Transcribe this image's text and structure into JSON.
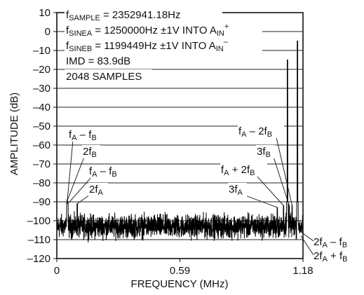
{
  "chart_data": {
    "type": "line",
    "xlabel": "FREQUENCY (MHz)",
    "ylabel": "AMPLITUDE (dB)",
    "xlim": [
      0,
      1.18
    ],
    "ylim": [
      -120,
      10
    ],
    "x_ticks": [
      {
        "value": 0,
        "label": "0"
      },
      {
        "value": 0.59,
        "label": "0.59"
      },
      {
        "value": 1.18,
        "label": "1.18"
      }
    ],
    "y_ticks": [
      10,
      0,
      -10,
      -20,
      -30,
      -40,
      -50,
      -60,
      -70,
      -80,
      -90,
      -100,
      -110,
      -120
    ],
    "grid": {
      "horizontal": true,
      "vertical": false
    },
    "info_lines": [
      [
        {
          "t": "f"
        },
        {
          "t": "SAMPLE",
          "sub": true
        },
        {
          "t": " = 2352941.18Hz"
        }
      ],
      [
        {
          "t": "f"
        },
        {
          "t": "SINEA",
          "sub": true
        },
        {
          "t": " = 1250000Hz ±1V INTO A"
        },
        {
          "t": "IN",
          "sub": true
        },
        {
          "t": "+",
          "sup": true
        }
      ],
      [
        {
          "t": "f"
        },
        {
          "t": "SINEB",
          "sub": true
        },
        {
          "t": " = 1199449Hz ±1V INTO A"
        },
        {
          "t": "IN",
          "sub": true
        },
        {
          "t": "–",
          "sup": true
        }
      ],
      [
        {
          "t": "IMD = 83.9dB"
        }
      ],
      [
        {
          "t": "2048 SAMPLES"
        }
      ]
    ],
    "peaks": [
      {
        "x": 1.1055,
        "y": -15
      },
      {
        "x": 1.1535,
        "y": -5
      }
    ],
    "noise_floor": {
      "mean": -103,
      "spread": 9,
      "points": 2048
    },
    "annotations": [
      {
        "id": "fa-minus-fb-top",
        "parts": [
          {
            "t": "f"
          },
          {
            "t": "A",
            "sub": true
          },
          {
            "t": " – f"
          },
          {
            "t": "B",
            "sub": true
          }
        ],
        "target_x": 0.0505,
        "target_y": -89
      },
      {
        "id": "2fb-left",
        "parts": [
          {
            "t": "2f"
          },
          {
            "t": "B",
            "sub": true
          }
        ],
        "target_x": 0.048,
        "target_y": -90
      },
      {
        "id": "fa-minus-fb-mid",
        "parts": [
          {
            "t": "f"
          },
          {
            "t": "A",
            "sub": true
          },
          {
            "t": " – f"
          },
          {
            "t": "B",
            "sub": true
          }
        ],
        "target_x": 0.053,
        "target_y": -91
      },
      {
        "id": "2fa-left",
        "parts": [
          {
            "t": "2f"
          },
          {
            "t": "A",
            "sub": true
          }
        ],
        "target_x": 0.098,
        "target_y": -91
      },
      {
        "id": "fa-minus-2fb",
        "parts": [
          {
            "t": "f"
          },
          {
            "t": "A",
            "sub": true
          },
          {
            "t": " – 2f"
          },
          {
            "t": "B",
            "sub": true
          }
        ],
        "target_x": 1.128,
        "target_y": -92
      },
      {
        "id": "3fb",
        "parts": [
          {
            "t": "3f"
          },
          {
            "t": "B",
            "sub": true
          }
        ],
        "target_x": 1.114,
        "target_y": -92
      },
      {
        "id": "fa-plus-2fb",
        "parts": [
          {
            "t": "f"
          },
          {
            "t": "A",
            "sub": true
          },
          {
            "t": " + 2f"
          },
          {
            "t": "B",
            "sub": true
          }
        ],
        "target_x": 1.087,
        "target_y": -92
      },
      {
        "id": "3fa",
        "parts": [
          {
            "t": "3f"
          },
          {
            "t": "A",
            "sub": true
          }
        ],
        "target_x": 1.057,
        "target_y": -93
      },
      {
        "id": "2fa-minus-fb",
        "parts": [
          {
            "t": "2f"
          },
          {
            "t": "A",
            "sub": true
          },
          {
            "t": " – f"
          },
          {
            "t": "B",
            "sub": true
          }
        ],
        "target_x": 1.16,
        "target_y": -105
      },
      {
        "id": "2fa-plus-fb",
        "parts": [
          {
            "t": "2f"
          },
          {
            "t": "A",
            "sub": true
          },
          {
            "t": " + f"
          },
          {
            "t": "B",
            "sub": true
          }
        ],
        "target_x": 1.17,
        "target_y": -108
      }
    ]
  }
}
